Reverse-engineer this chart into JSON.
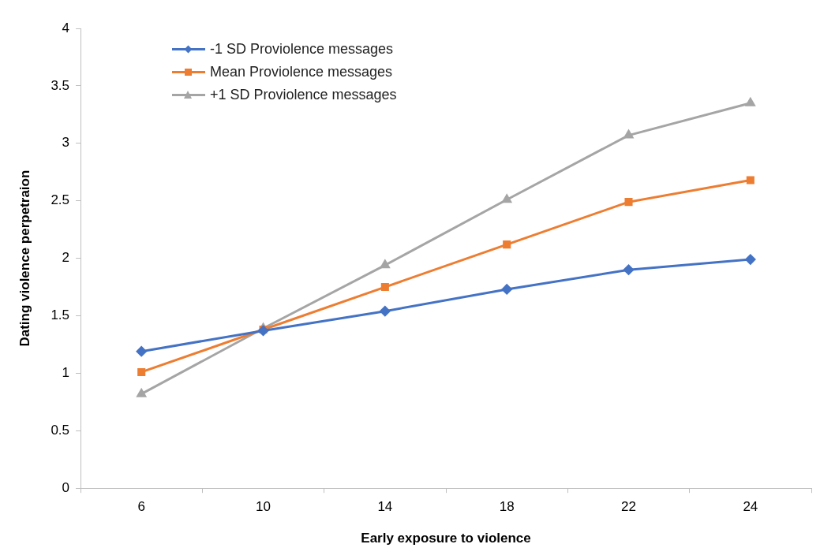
{
  "chart_data": {
    "type": "line",
    "xlabel": "Early exposure to violence",
    "ylabel": "Dating violence perpetraion",
    "categories": [
      "6",
      "10",
      "14",
      "18",
      "22",
      "24"
    ],
    "series": [
      {
        "name": "-1 SD Proviolence messages",
        "color": "#4472c4",
        "marker": "diamond",
        "values": [
          1.19,
          1.37,
          1.54,
          1.73,
          1.9,
          1.99
        ]
      },
      {
        "name": "Mean Proviolence messages",
        "color": "#ed7d31",
        "marker": "square",
        "values": [
          1.01,
          1.38,
          1.75,
          2.12,
          2.49,
          2.68
        ]
      },
      {
        "name": "+1 SD Proviolence messages",
        "color": "#a5a5a5",
        "marker": "triangle",
        "values": [
          0.82,
          1.39,
          1.94,
          2.51,
          3.07,
          3.35
        ]
      }
    ],
    "ylim": [
      0,
      4
    ],
    "yticks": [
      0,
      0.5,
      1,
      1.5,
      2,
      2.5,
      3,
      3.5,
      4
    ],
    "grid": false,
    "legend": "top left"
  }
}
